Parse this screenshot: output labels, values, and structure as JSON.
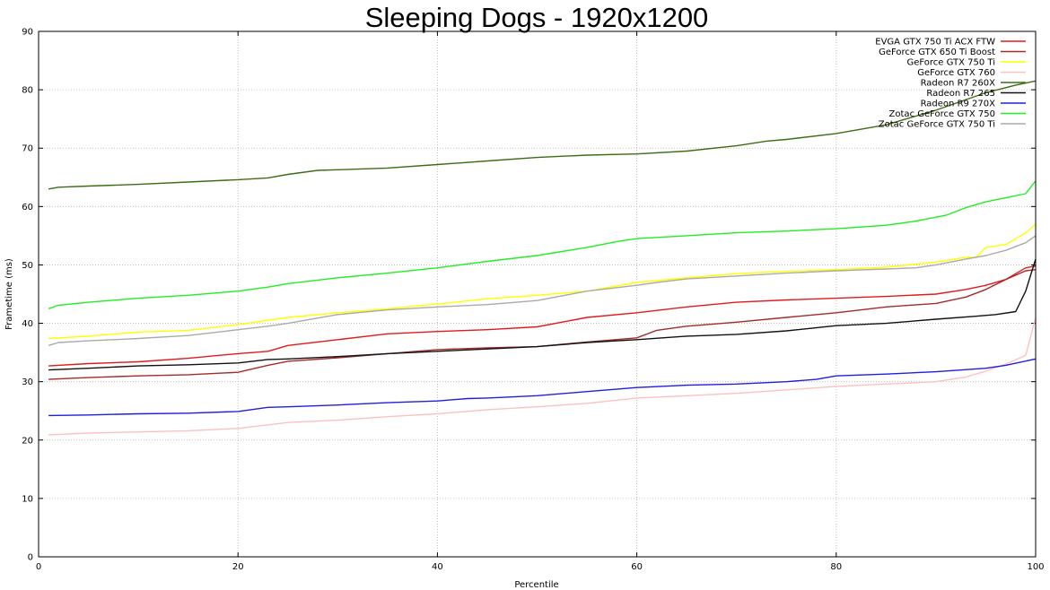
{
  "chart_data": {
    "type": "line",
    "title": "Sleeping Dogs - 1920x1200",
    "xlabel": "Percentile",
    "ylabel": "Frametime (ms)",
    "xlim": [
      0,
      100
    ],
    "ylim": [
      0,
      90
    ],
    "xticks": [
      0,
      20,
      40,
      60,
      80,
      100
    ],
    "yticks": [
      0,
      10,
      20,
      30,
      40,
      50,
      60,
      70,
      80,
      90
    ],
    "grid": true,
    "legend_position": "top-right",
    "series": [
      {
        "name": "EVGA GTX 750 Ti ACX FTW",
        "color": "#e31a1c",
        "x": [
          1,
          5,
          10,
          15,
          20,
          23,
          25,
          30,
          35,
          40,
          45,
          50,
          55,
          60,
          65,
          70,
          75,
          80,
          85,
          90,
          93,
          95,
          97,
          99,
          100
        ],
        "y": [
          32.7,
          33.1,
          33.4,
          34.0,
          34.8,
          35.2,
          36.2,
          37.2,
          38.2,
          38.6,
          38.9,
          39.4,
          41.0,
          41.8,
          42.8,
          43.6,
          44.0,
          44.3,
          44.6,
          45.0,
          45.8,
          46.5,
          47.5,
          49.5,
          49.8
        ]
      },
      {
        "name": "GeForce GTX 650 Ti Boost",
        "color": "#a52a2a",
        "x": [
          1,
          5,
          10,
          15,
          20,
          23,
          25,
          30,
          35,
          40,
          45,
          50,
          55,
          60,
          62,
          65,
          70,
          75,
          80,
          85,
          90,
          93,
          95,
          97,
          99,
          100
        ],
        "y": [
          30.4,
          30.7,
          31.0,
          31.2,
          31.6,
          32.8,
          33.5,
          34.1,
          34.8,
          35.5,
          35.8,
          36.0,
          36.8,
          37.5,
          38.8,
          39.5,
          40.2,
          41.0,
          41.8,
          42.8,
          43.4,
          44.5,
          45.8,
          47.5,
          49.0,
          49.2
        ]
      },
      {
        "name": "GeForce GTX 750 Ti",
        "color": "#ffff00",
        "x": [
          1,
          5,
          10,
          15,
          20,
          25,
          30,
          35,
          40,
          45,
          50,
          55,
          60,
          65,
          70,
          75,
          80,
          85,
          90,
          93,
          94,
          95,
          97,
          99,
          100
        ],
        "y": [
          37.4,
          37.8,
          38.5,
          38.8,
          39.8,
          41.0,
          41.8,
          42.5,
          43.3,
          44.2,
          44.8,
          45.5,
          47.0,
          47.8,
          48.5,
          48.9,
          49.2,
          49.6,
          50.5,
          51.3,
          51.3,
          53.0,
          53.5,
          55.5,
          57.0
        ]
      },
      {
        "name": "GeForce GTX 760",
        "color": "#ffc0c0",
        "x": [
          1,
          5,
          10,
          15,
          20,
          25,
          30,
          35,
          40,
          45,
          50,
          55,
          60,
          65,
          70,
          75,
          80,
          85,
          90,
          93,
          95,
          97,
          99,
          100
        ],
        "y": [
          20.9,
          21.2,
          21.4,
          21.6,
          22.0,
          23.0,
          23.4,
          24.0,
          24.5,
          25.2,
          25.7,
          26.3,
          27.2,
          27.6,
          28.0,
          28.6,
          29.2,
          29.6,
          30.0,
          30.8,
          31.8,
          33.0,
          34.5,
          41.0
        ]
      },
      {
        "name": "Radeon R7 260X",
        "color": "#3b6e14",
        "x": [
          1,
          2,
          5,
          10,
          15,
          20,
          23,
          25,
          28,
          30,
          35,
          40,
          45,
          50,
          55,
          60,
          65,
          70,
          73,
          75,
          80,
          85,
          90,
          95,
          98,
          100
        ],
        "y": [
          63.0,
          63.3,
          63.5,
          63.8,
          64.2,
          64.6,
          64.9,
          65.5,
          66.2,
          66.3,
          66.6,
          67.2,
          67.8,
          68.4,
          68.8,
          69.0,
          69.5,
          70.4,
          71.2,
          71.5,
          72.5,
          74.0,
          76.5,
          79.5,
          80.8,
          81.5
        ]
      },
      {
        "name": "Radeon R7 265",
        "color": "#111111",
        "x": [
          1,
          5,
          10,
          15,
          20,
          23,
          25,
          30,
          35,
          40,
          45,
          50,
          55,
          60,
          65,
          70,
          75,
          80,
          85,
          90,
          94,
          96,
          98,
          99,
          100
        ],
        "y": [
          32.0,
          32.3,
          32.7,
          32.9,
          33.2,
          33.8,
          33.9,
          34.3,
          34.8,
          35.2,
          35.6,
          36.0,
          36.7,
          37.2,
          37.8,
          38.1,
          38.7,
          39.6,
          40.0,
          40.7,
          41.2,
          41.5,
          42.0,
          45.5,
          51.0
        ]
      },
      {
        "name": "Radeon R9 270X",
        "color": "#1f1fe0",
        "x": [
          1,
          5,
          10,
          15,
          20,
          23,
          25,
          30,
          35,
          40,
          43,
          45,
          50,
          55,
          60,
          65,
          70,
          75,
          78,
          80,
          85,
          90,
          95,
          97,
          100
        ],
        "y": [
          24.2,
          24.3,
          24.5,
          24.6,
          24.9,
          25.6,
          25.7,
          26.0,
          26.4,
          26.7,
          27.1,
          27.2,
          27.6,
          28.3,
          29.0,
          29.4,
          29.6,
          30.0,
          30.4,
          31.0,
          31.3,
          31.7,
          32.3,
          32.8,
          33.9
        ]
      },
      {
        "name": "Zotac GeForce GTX 750",
        "color": "#22ee22",
        "x": [
          1,
          2,
          5,
          10,
          15,
          20,
          23,
          25,
          30,
          35,
          40,
          45,
          50,
          55,
          58,
          60,
          65,
          70,
          75,
          80,
          85,
          88,
          91,
          93,
          95,
          97,
          99,
          100
        ],
        "y": [
          42.5,
          43.1,
          43.6,
          44.3,
          44.8,
          45.5,
          46.2,
          46.8,
          47.8,
          48.6,
          49.5,
          50.6,
          51.6,
          53.0,
          54.0,
          54.5,
          55.0,
          55.5,
          55.8,
          56.2,
          56.8,
          57.5,
          58.5,
          59.8,
          60.8,
          61.5,
          62.2,
          64.4
        ]
      },
      {
        "name": "Zotac GeForce GTX 750 Ti",
        "color": "#aaaaaa",
        "x": [
          1,
          2,
          5,
          10,
          15,
          20,
          23,
          25,
          30,
          35,
          40,
          45,
          50,
          55,
          60,
          62,
          65,
          70,
          75,
          80,
          85,
          88,
          90,
          93,
          95,
          97,
          99,
          100
        ],
        "y": [
          36.2,
          36.7,
          37.0,
          37.4,
          37.9,
          38.9,
          39.5,
          40.0,
          41.5,
          42.3,
          42.8,
          43.2,
          43.9,
          45.5,
          46.5,
          47.0,
          47.6,
          48.1,
          48.6,
          49.0,
          49.3,
          49.5,
          50.0,
          51.0,
          51.6,
          52.5,
          53.8,
          55.0
        ]
      }
    ]
  }
}
